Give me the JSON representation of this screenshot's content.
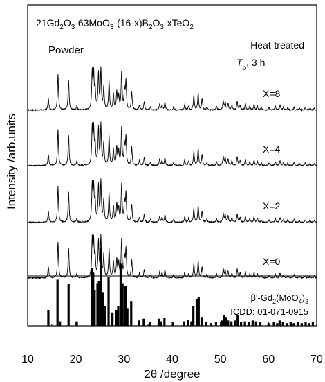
{
  "chart_data": {
    "type": "line",
    "composition": "21Gd2O3-63MoO3-(16-x)B2O3-xTeO2",
    "sample_form": "Powder",
    "treatment_line1": "Heat-treated",
    "treatment_symbol": "T",
    "treatment_subscript": "p",
    "treatment_rest": ", 3 h",
    "xlabel": "2θ /degree",
    "ylabel": "Intensity /arb.units",
    "xlim": [
      10,
      70
    ],
    "xticks": [
      10,
      20,
      30,
      40,
      50,
      60,
      70
    ],
    "grid": false,
    "series": [
      {
        "name": "X=8"
      },
      {
        "name": "X=4"
      },
      {
        "name": "X=2"
      },
      {
        "name": "X=0"
      }
    ],
    "peaks_2theta": [
      [
        14.3,
        0.28
      ],
      [
        16.3,
        0.9
      ],
      [
        18.5,
        0.75
      ],
      [
        20.2,
        0.1
      ],
      [
        23.4,
        0.92
      ],
      [
        23.7,
        0.85
      ],
      [
        24.0,
        0.5
      ],
      [
        24.7,
        0.9
      ],
      [
        25.2,
        1.0
      ],
      [
        25.8,
        0.55
      ],
      [
        26.9,
        0.72
      ],
      [
        27.8,
        0.4
      ],
      [
        28.5,
        0.45
      ],
      [
        28.9,
        0.35
      ],
      [
        29.5,
        0.92
      ],
      [
        30.1,
        0.48
      ],
      [
        30.4,
        0.7
      ],
      [
        31.6,
        0.45
      ],
      [
        33.2,
        0.12
      ],
      [
        34.2,
        0.2
      ],
      [
        35.5,
        0.08
      ],
      [
        37.4,
        0.15
      ],
      [
        37.9,
        0.12
      ],
      [
        38.5,
        0.2
      ],
      [
        40.3,
        0.08
      ],
      [
        42.6,
        0.14
      ],
      [
        43.4,
        0.1
      ],
      [
        44.5,
        0.36
      ],
      [
        45.4,
        0.42
      ],
      [
        46.2,
        0.28
      ],
      [
        47.2,
        0.08
      ],
      [
        49.2,
        0.1
      ],
      [
        50.6,
        0.22
      ],
      [
        51.0,
        0.2
      ],
      [
        51.6,
        0.16
      ],
      [
        52.4,
        0.12
      ],
      [
        53.5,
        0.22
      ],
      [
        54.1,
        0.12
      ],
      [
        55.2,
        0.15
      ],
      [
        56.1,
        0.1
      ],
      [
        57.0,
        0.14
      ],
      [
        57.7,
        0.1
      ],
      [
        58.5,
        0.07
      ],
      [
        60.1,
        0.06
      ],
      [
        61.4,
        0.1
      ],
      [
        62.4,
        0.12
      ],
      [
        63.1,
        0.08
      ],
      [
        64.0,
        0.06
      ],
      [
        65.3,
        0.07
      ],
      [
        66.4,
        0.05
      ],
      [
        67.6,
        0.06
      ],
      [
        68.6,
        0.05
      ],
      [
        69.5,
        0.05
      ]
    ],
    "reference": {
      "phase_prefix": "β'-Gd",
      "phase_sub1": "2",
      "phase_mid": "(MoO",
      "phase_sub2": "4",
      "phase_end": ")",
      "phase_sub3": "3",
      "card": "ICDD: 01-071-0915",
      "lines": [
        [
          14.3,
          0.18
        ],
        [
          16.2,
          0.52
        ],
        [
          16.7,
          0.05
        ],
        [
          18.5,
          0.47
        ],
        [
          20.2,
          0.05
        ],
        [
          23.3,
          0.65
        ],
        [
          23.6,
          0.6
        ],
        [
          23.9,
          0.4
        ],
        [
          24.5,
          0.48
        ],
        [
          24.8,
          0.5
        ],
        [
          25.2,
          0.88
        ],
        [
          25.6,
          0.38
        ],
        [
          26.0,
          0.22
        ],
        [
          26.8,
          0.55
        ],
        [
          27.6,
          0.15
        ],
        [
          28.4,
          0.18
        ],
        [
          28.8,
          0.22
        ],
        [
          29.3,
          0.7
        ],
        [
          29.7,
          0.48
        ],
        [
          30.3,
          0.45
        ],
        [
          30.7,
          0.2
        ],
        [
          31.5,
          0.28
        ],
        [
          33.1,
          0.06
        ],
        [
          34.1,
          0.08
        ],
        [
          35.4,
          0.04
        ],
        [
          37.2,
          0.08
        ],
        [
          37.7,
          0.05
        ],
        [
          38.4,
          0.09
        ],
        [
          40.2,
          0.04
        ],
        [
          42.5,
          0.05
        ],
        [
          43.3,
          0.07
        ],
        [
          44.0,
          0.05
        ],
        [
          44.4,
          0.22
        ],
        [
          45.1,
          0.3
        ],
        [
          45.5,
          0.32
        ],
        [
          46.1,
          0.1
        ],
        [
          47.0,
          0.04
        ],
        [
          48.0,
          0.03
        ],
        [
          49.1,
          0.04
        ],
        [
          50.3,
          0.06
        ],
        [
          50.8,
          0.12
        ],
        [
          51.2,
          0.1
        ],
        [
          51.6,
          0.06
        ],
        [
          52.3,
          0.05
        ],
        [
          53.0,
          0.06
        ],
        [
          53.6,
          0.12
        ],
        [
          54.3,
          0.04
        ],
        [
          55.1,
          0.05
        ],
        [
          55.9,
          0.04
        ],
        [
          56.7,
          0.06
        ],
        [
          57.4,
          0.05
        ],
        [
          58.3,
          0.04
        ],
        [
          60.0,
          0.03
        ],
        [
          61.1,
          0.04
        ],
        [
          61.8,
          0.03
        ],
        [
          62.3,
          0.06
        ],
        [
          63.0,
          0.04
        ],
        [
          63.8,
          0.03
        ],
        [
          64.6,
          0.04
        ],
        [
          65.3,
          0.03
        ],
        [
          66.1,
          0.04
        ],
        [
          66.9,
          0.03
        ],
        [
          67.7,
          0.04
        ],
        [
          68.4,
          0.03
        ],
        [
          69.2,
          0.04
        ]
      ]
    }
  }
}
